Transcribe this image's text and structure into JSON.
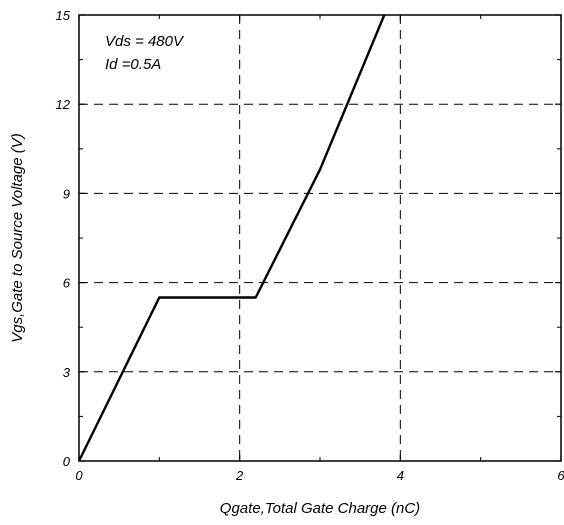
{
  "chart_data": {
    "type": "line",
    "title": "",
    "xlabel": "Qgate,Total Gate Charge (nC)",
    "ylabel": "Vgs,Gate to Source Voltage (V)",
    "xlim": [
      0,
      6
    ],
    "ylim": [
      0,
      15
    ],
    "xticks": [
      0,
      2,
      4,
      6
    ],
    "yticks": [
      0,
      3,
      6,
      9,
      12,
      15
    ],
    "xtick_labels": [
      "0",
      "2",
      "4",
      "6"
    ],
    "ytick_labels": [
      "0",
      "3",
      "6",
      "9",
      "12",
      "15"
    ],
    "grid": true,
    "grid_style": "dashed",
    "annotations": [
      "Vds = 480V",
      "Id =0.5A"
    ],
    "series": [
      {
        "x": [
          0,
          1.0,
          2.2,
          3.0,
          3.8
        ],
        "y": [
          0,
          5.5,
          5.5,
          9.8,
          15
        ],
        "color": "#000000"
      }
    ]
  }
}
